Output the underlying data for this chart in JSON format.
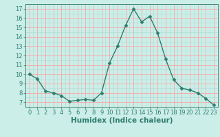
{
  "x": [
    0,
    1,
    2,
    3,
    4,
    5,
    6,
    7,
    8,
    9,
    10,
    11,
    12,
    13,
    14,
    15,
    16,
    17,
    18,
    19,
    20,
    21,
    22,
    23
  ],
  "y": [
    10,
    9.5,
    8.2,
    8.0,
    7.7,
    7.1,
    7.2,
    7.3,
    7.2,
    8.0,
    11.2,
    13.0,
    15.2,
    17.0,
    15.6,
    16.2,
    14.4,
    11.6,
    9.4,
    8.5,
    8.3,
    8.0,
    7.4,
    6.7
  ],
  "line_color": "#2e7d6e",
  "marker": "D",
  "marker_size": 2.5,
  "xlabel": "Humidex (Indice chaleur)",
  "xlim": [
    -0.5,
    23.5
  ],
  "ylim": [
    6.5,
    17.5
  ],
  "yticks": [
    7,
    8,
    9,
    10,
    11,
    12,
    13,
    14,
    15,
    16,
    17
  ],
  "xticks": [
    0,
    1,
    2,
    3,
    4,
    5,
    6,
    7,
    8,
    9,
    10,
    11,
    12,
    13,
    14,
    15,
    16,
    17,
    18,
    19,
    20,
    21,
    22,
    23
  ],
  "bg_color": "#cceee8",
  "grid_minor_color": "#b0ddd8",
  "grid_major_color": "#ff9999",
  "tick_fontsize": 6,
  "xlabel_fontsize": 7.5,
  "linewidth": 1.0
}
